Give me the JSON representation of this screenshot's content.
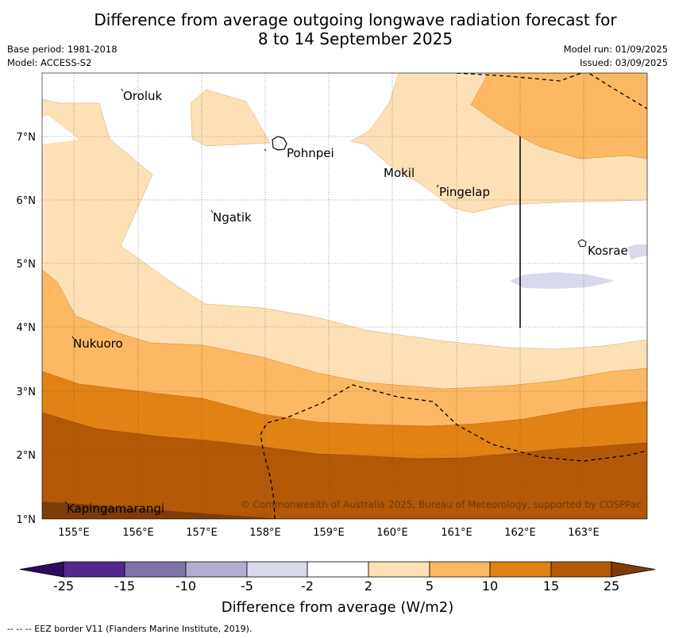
{
  "title_line1": "Difference from average outgoing longwave radiation forecast for",
  "title_line2": "8 to 14 September 2025",
  "base_period": "Base period: 1981-2018",
  "model": "Model: ACCESS-S2",
  "model_run": "Model run: 01/09/2025",
  "issued": "Issued: 03/09/2025",
  "places": {
    "oroluk": "Oroluk",
    "pohnpei": "Pohnpei",
    "mokil": "Mokil",
    "pingelap": "Pingelap",
    "ngatik": "Ngatik",
    "kosrae": "Kosrae",
    "nukuoro": "Nukuoro",
    "kapingamarangi": "Kapingamarangi"
  },
  "lat_labels": [
    "7°N",
    "6°N",
    "5°N",
    "4°N",
    "3°N",
    "2°N",
    "1°N"
  ],
  "lon_labels": [
    "155°E",
    "156°E",
    "157°E",
    "158°E",
    "159°E",
    "160°E",
    "161°E",
    "162°E",
    "163°E"
  ],
  "copyright": "© Commonwealth of Australia 2025, Bureau of Meteorology, supported by COSPPac",
  "colorbar": {
    "ticks": [
      "-25",
      "-15",
      "-10",
      "-5",
      "-2",
      "2",
      "5",
      "10",
      "15",
      "25"
    ],
    "colors": [
      "#2d0a5e",
      "#54278f",
      "#8073ac",
      "#b2abd2",
      "#d8daeb",
      "#ffffff",
      "#fee0b6",
      "#fdb863",
      "#e08214",
      "#b35806",
      "#7f3b08"
    ],
    "title": "Difference from average (W/m2)"
  },
  "footnote": "--  --  -- EEZ border V11 (Flanders Marine Institute, 2019)."
}
